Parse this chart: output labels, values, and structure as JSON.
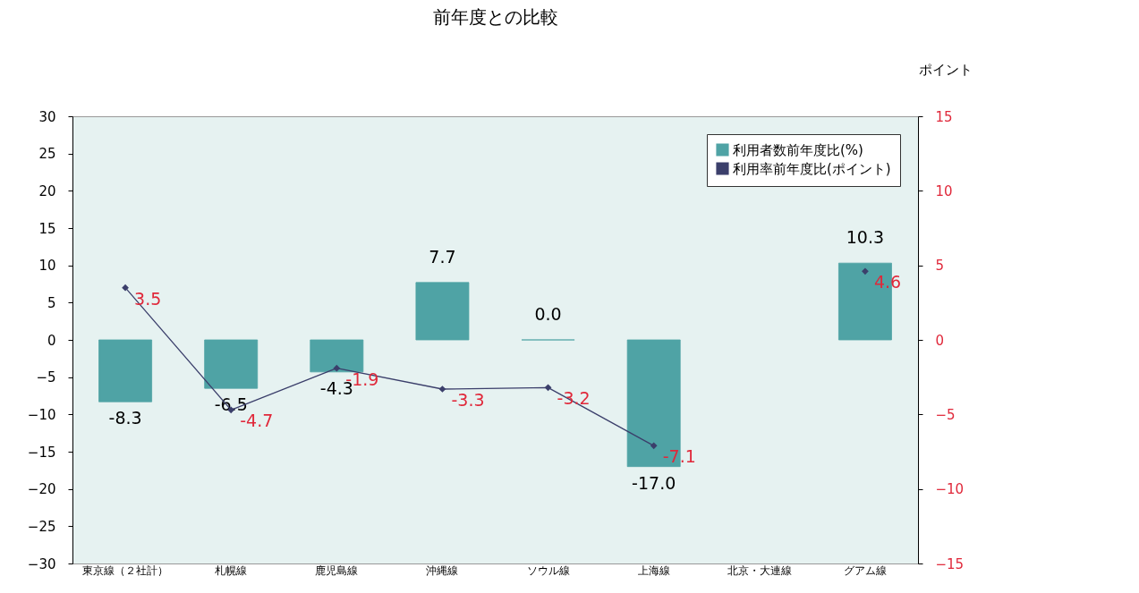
{
  "chart_data": {
    "type": "bar",
    "title": "前年度との比較",
    "y2label": "ポイント",
    "categories": [
      "東京線（２社計）",
      "札幌線",
      "鹿児島線",
      "沖縄線",
      "ソウル線",
      "上海線",
      "北京・大連線",
      "グアム線"
    ],
    "series": [
      {
        "name": "利用者数前年度比(%)",
        "color": "#4fa3a5",
        "values": [
          -8.3,
          -6.5,
          -4.3,
          7.7,
          0.0,
          -17.0,
          null,
          10.3
        ],
        "value_labels": [
          "-8.3",
          "-6.5",
          "-4.3",
          "7.7",
          "0.0",
          "-17.0",
          null,
          "10.3"
        ]
      },
      {
        "name": "利用率前年度比(ポイント)",
        "type": "line",
        "axis": "y2",
        "color": "#3b3f6b",
        "values": [
          3.5,
          -4.7,
          -1.9,
          -3.3,
          -3.2,
          -7.1,
          null,
          4.6
        ],
        "value_labels": [
          "3.5",
          "-4.7",
          "-1.9",
          "-3.3",
          "-3.2",
          "-7.1",
          null,
          "4.6"
        ]
      }
    ],
    "ylim": [
      -30,
      30
    ],
    "yticks": [
      -30,
      -25,
      -20,
      -15,
      -10,
      -5,
      0,
      5,
      10,
      15,
      20,
      25,
      30
    ],
    "y2lim": [
      -15,
      15
    ],
    "y2ticks": [
      -15,
      -10,
      -5,
      0,
      5,
      10,
      15
    ],
    "legend": "top right",
    "marker": "diamond"
  }
}
